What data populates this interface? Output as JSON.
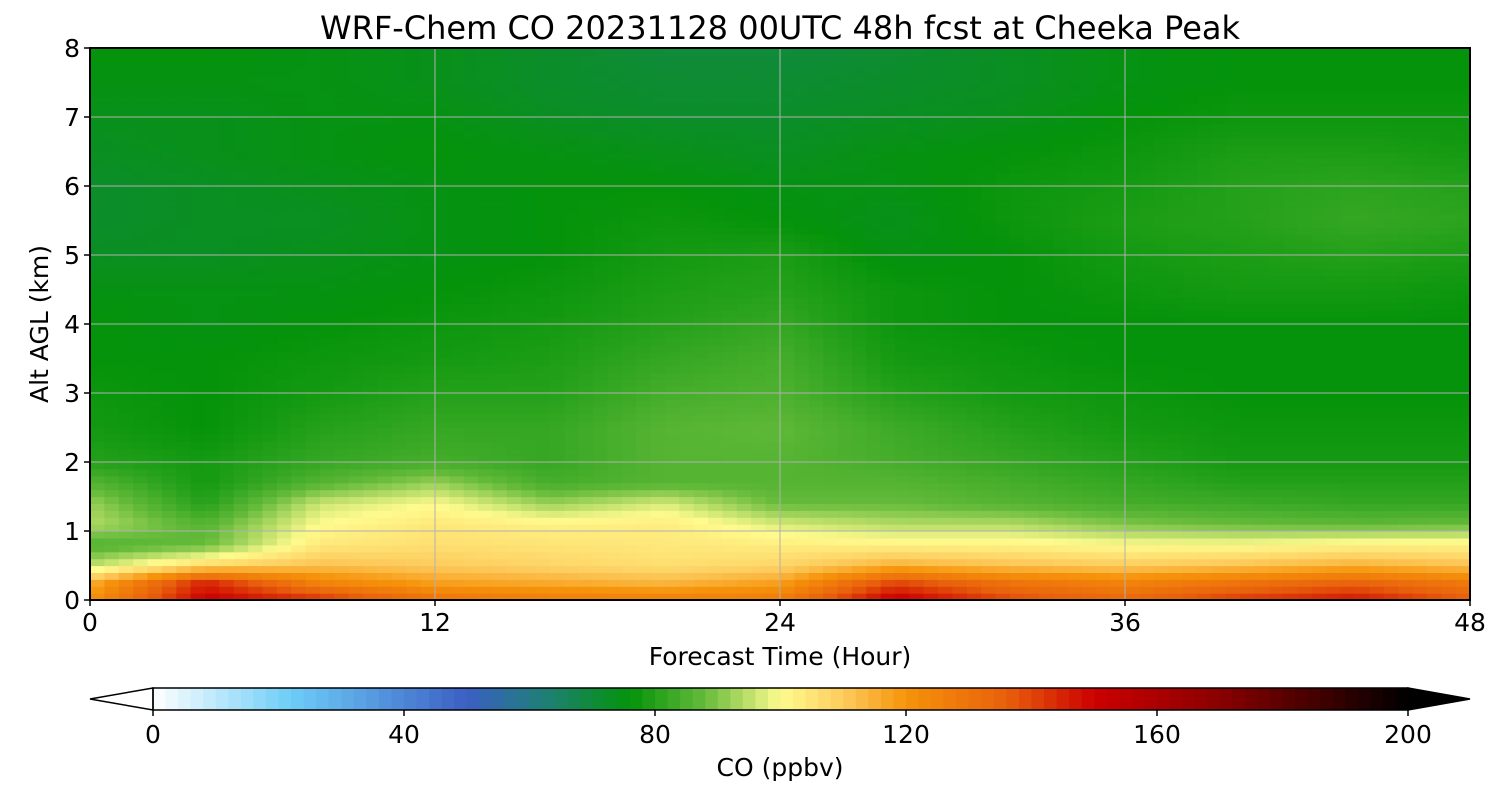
{
  "chart_data": {
    "type": "heatmap",
    "title": "WRF-Chem CO  20231128 00UTC 48h fcst at Cheeka Peak",
    "xlabel": "Forecast Time (Hour)",
    "ylabel": "Alt AGL (km)",
    "xlim": [
      0,
      48
    ],
    "ylim": [
      0,
      8
    ],
    "x_ticks": [
      "0",
      "12",
      "24",
      "36",
      "48"
    ],
    "y_ticks": [
      "0",
      "1",
      "2",
      "3",
      "4",
      "5",
      "6",
      "7",
      "8"
    ],
    "grid": true,
    "x": [
      0,
      4,
      8,
      12,
      16,
      20,
      24,
      28,
      32,
      36,
      40,
      44,
      48
    ],
    "y": [
      0.05,
      0.25,
      0.5,
      0.8,
      1.1,
      1.4,
      1.7,
      2.0,
      2.5,
      3.0,
      3.5,
      4.0,
      4.5,
      5.0,
      5.5,
      6.0,
      6.5,
      7.0,
      7.5,
      8.0
    ],
    "z": [
      [
        120,
        150,
        140,
        128,
        125,
        124,
        126,
        150,
        138,
        132,
        140,
        145,
        135
      ],
      [
        115,
        145,
        125,
        118,
        116,
        114,
        118,
        140,
        130,
        125,
        130,
        135,
        128
      ],
      [
        95,
        108,
        112,
        110,
        108,
        106,
        108,
        115,
        112,
        110,
        112,
        115,
        112
      ],
      [
        85,
        88,
        104,
        106,
        105,
        104,
        103,
        102,
        102,
        100,
        100,
        102,
        102
      ],
      [
        94,
        86,
        100,
        104,
        102,
        103,
        97,
        94,
        94,
        90,
        88,
        87,
        88
      ],
      [
        92,
        80,
        96,
        100,
        92,
        97,
        88,
        88,
        86,
        84,
        83,
        82,
        82
      ],
      [
        86,
        78,
        86,
        92,
        84,
        86,
        86,
        86,
        84,
        82,
        80,
        80,
        80
      ],
      [
        80,
        78,
        82,
        84,
        82,
        86,
        86,
        84,
        82,
        80,
        78,
        78,
        78
      ],
      [
        78,
        76,
        80,
        82,
        82,
        86,
        87,
        83,
        80,
        78,
        77,
        77,
        77
      ],
      [
        77,
        76,
        78,
        80,
        80,
        84,
        85,
        80,
        78,
        77,
        76,
        76,
        76
      ],
      [
        76,
        76,
        77,
        78,
        79,
        82,
        84,
        78,
        77,
        76,
        76,
        76,
        76
      ],
      [
        76,
        75,
        76,
        77,
        78,
        80,
        82,
        77,
        76,
        76,
        76,
        76,
        76
      ],
      [
        75,
        75,
        75,
        76,
        77,
        79,
        80,
        77,
        76,
        77,
        78,
        78,
        77
      ],
      [
        73,
        73,
        74,
        75,
        76,
        78,
        79,
        75,
        76,
        78,
        79,
        80,
        79
      ],
      [
        72,
        73,
        73,
        75,
        76,
        77,
        76,
        74,
        77,
        79,
        80,
        82,
        81
      ],
      [
        72,
        73,
        74,
        75,
        76,
        76,
        75,
        75,
        77,
        78,
        80,
        81,
        80
      ],
      [
        73,
        74,
        75,
        76,
        75,
        74,
        73,
        75,
        76,
        77,
        79,
        79,
        78
      ],
      [
        74,
        74,
        75,
        75,
        73,
        72,
        72,
        73,
        74,
        76,
        77,
        77,
        77
      ],
      [
        75,
        75,
        75,
        74,
        72,
        71,
        71,
        72,
        73,
        75,
        76,
        76,
        76
      ],
      [
        76,
        76,
        75,
        74,
        72,
        70,
        70,
        71,
        73,
        75,
        76,
        76,
        76
      ]
    ],
    "colorbar": {
      "label": "CO  (ppbv)",
      "min": 0,
      "max": 200,
      "ticks": [
        "0",
        "40",
        "80",
        "120",
        "160",
        "200"
      ],
      "extend": "both",
      "stops": [
        {
          "v": 0,
          "c": "#ffffff"
        },
        {
          "v": 22,
          "c": "#6dcdf7"
        },
        {
          "v": 50,
          "c": "#3b5fc4"
        },
        {
          "v": 62,
          "c": "#1f7f7a"
        },
        {
          "v": 76,
          "c": "#04930a"
        },
        {
          "v": 88,
          "c": "#66bb3b"
        },
        {
          "v": 100,
          "c": "#fffb8e"
        },
        {
          "v": 110,
          "c": "#fdcb5d"
        },
        {
          "v": 120,
          "c": "#f6930a"
        },
        {
          "v": 136,
          "c": "#e8600c"
        },
        {
          "v": 150,
          "c": "#cc0000"
        },
        {
          "v": 170,
          "c": "#8a0000"
        },
        {
          "v": 200,
          "c": "#000000"
        }
      ]
    }
  }
}
